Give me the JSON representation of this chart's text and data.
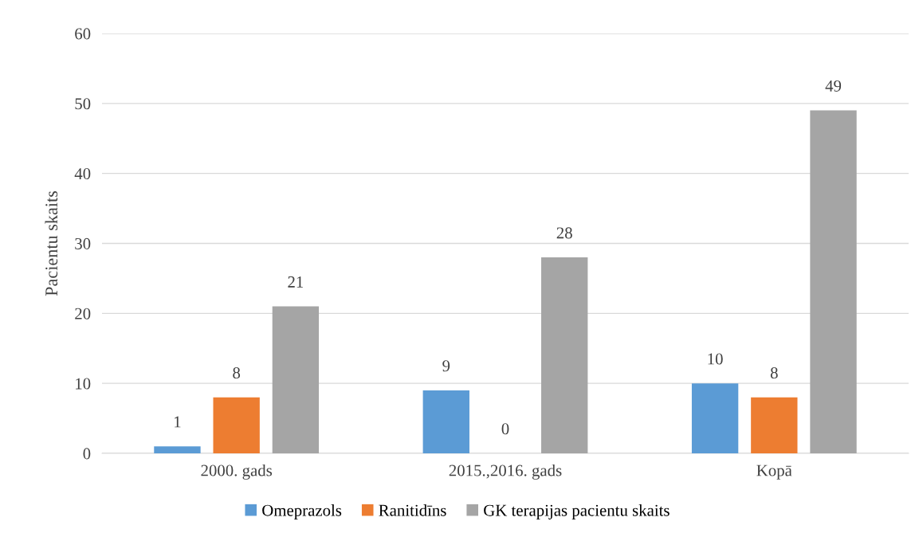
{
  "chart_data": {
    "type": "bar",
    "ylabel": "Pacientu skaits",
    "categories": [
      "2000. gads",
      "2015.,2016. gads",
      "Kopā"
    ],
    "series": [
      {
        "name": "Omeprazols",
        "color": "#5b9bd5",
        "values": [
          1,
          9,
          10
        ]
      },
      {
        "name": "Ranitidīns",
        "color": "#ed7d31",
        "values": [
          8,
          0,
          8
        ]
      },
      {
        "name": "GK terapijas pacientu skaits",
        "color": "#a5a5a5",
        "values": [
          21,
          28,
          49
        ]
      }
    ],
    "ylim": [
      0,
      60
    ],
    "yticks": [
      0,
      10,
      20,
      30,
      40,
      50,
      60
    ],
    "grid": "y",
    "legend": "bottom",
    "data_labels": true
  }
}
